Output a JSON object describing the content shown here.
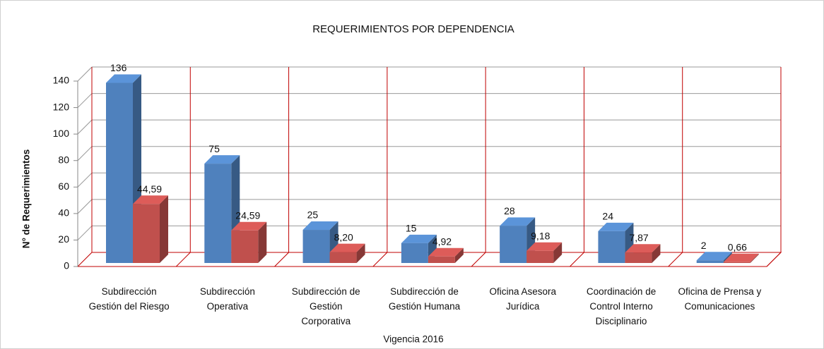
{
  "chart_data": {
    "type": "bar3d",
    "title": "REQUERIMIENTOS POR DEPENDENCIA",
    "x_label": "Vigencia 2016",
    "y_label": "N° de Requerimientos",
    "categories": [
      "Subdirección Gestión del Riesgo",
      "Subdirección Operativa",
      "Subdirección de Gestión Corporativa",
      "Subdirección de Gestión Humana",
      "Oficina Asesora Jurídica",
      "Coordinación de Control Interno Disciplinario",
      "Oficina de Prensa y Comunicaciones"
    ],
    "series": [
      {
        "color": "#4f81bd",
        "values": [
          136,
          75,
          25,
          15,
          28,
          24,
          2
        ]
      },
      {
        "color": "#c0504d",
        "values": [
          44.59,
          24.59,
          8.2,
          4.92,
          9.18,
          7.87,
          0.66
        ],
        "value_labels": [
          "44,59",
          "24,59",
          "8,20",
          "4,92",
          "9,18",
          "7,87",
          "0,66"
        ]
      }
    ],
    "ylim": [
      0,
      140
    ],
    "yticks": [
      0,
      20,
      40,
      60,
      80,
      100,
      120,
      140
    ],
    "grid": true
  }
}
